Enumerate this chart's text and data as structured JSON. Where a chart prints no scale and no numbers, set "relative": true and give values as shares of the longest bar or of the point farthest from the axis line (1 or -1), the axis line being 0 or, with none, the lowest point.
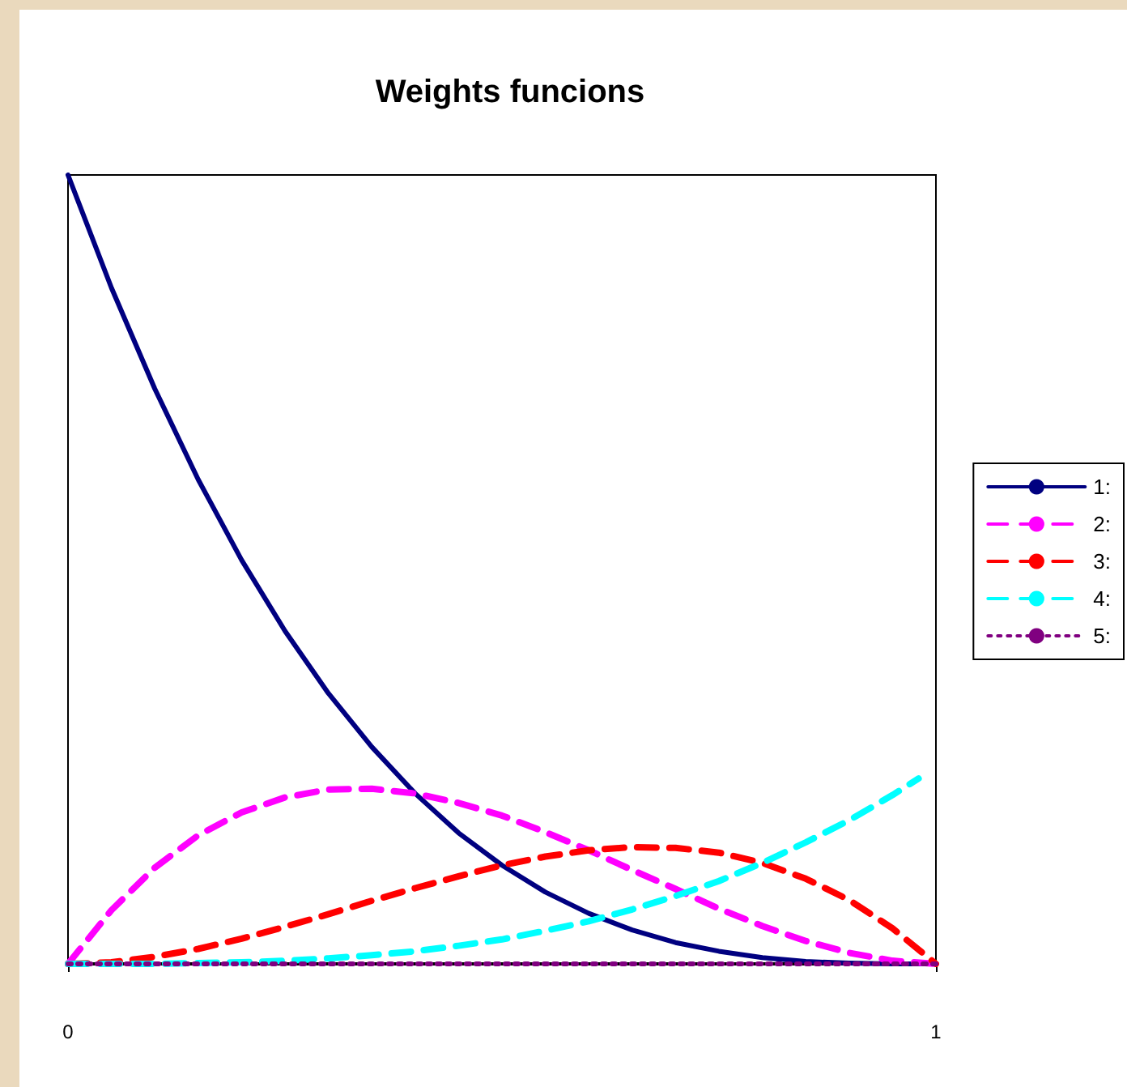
{
  "chart_data": {
    "type": "line",
    "title": "Weights funcions",
    "relative": true,
    "xlim": [
      0,
      1
    ],
    "xticks": [
      0,
      1
    ],
    "grid": false,
    "legend": "right",
    "marker": "none",
    "x": [
      0,
      0.05,
      0.1,
      0.15,
      0.2,
      0.25,
      0.3,
      0.35,
      0.4,
      0.45,
      0.5,
      0.55,
      0.6,
      0.65,
      0.7,
      0.75,
      0.8,
      0.85,
      0.9,
      0.95,
      1
    ],
    "series": [
      {
        "name": "1:",
        "color": "#000080",
        "line_style": "solid",
        "values": [
          1,
          0.857,
          0.729,
          0.614,
          0.512,
          0.422,
          0.343,
          0.275,
          0.216,
          0.166,
          0.125,
          0.091,
          0.064,
          0.043,
          0.027,
          0.016,
          0.008,
          0.003,
          0.001,
          0,
          0
        ]
      },
      {
        "name": "2:",
        "color": "#ff00ff",
        "line_style": "dashed",
        "values": [
          0,
          0.068,
          0.122,
          0.163,
          0.192,
          0.211,
          0.221,
          0.222,
          0.216,
          0.204,
          0.188,
          0.167,
          0.144,
          0.119,
          0.095,
          0.07,
          0.048,
          0.029,
          0.014,
          0.004,
          0
        ]
      },
      {
        "name": "3:",
        "color": "#ff0000",
        "line_style": "dashed",
        "values": [
          0,
          0.002,
          0.009,
          0.019,
          0.032,
          0.047,
          0.063,
          0.08,
          0.096,
          0.111,
          0.125,
          0.136,
          0.144,
          0.148,
          0.147,
          0.141,
          0.128,
          0.108,
          0.081,
          0.045,
          0
        ]
      },
      {
        "name": "4:",
        "color": "#00ffff",
        "line_style": "dashed",
        "x": [
          0,
          0.05,
          0.1,
          0.15,
          0.2,
          0.25,
          0.3,
          0.35,
          0.4,
          0.45,
          0.5,
          0.55,
          0.6,
          0.65,
          0.7,
          0.75,
          0.8,
          0.85,
          0.9,
          0.95,
          0.98
        ],
        "values": [
          0,
          0,
          0,
          0.001,
          0.002,
          0.004,
          0.007,
          0.011,
          0.016,
          0.023,
          0.031,
          0.042,
          0.054,
          0.069,
          0.086,
          0.105,
          0.128,
          0.154,
          0.182,
          0.214,
          0.235
        ]
      },
      {
        "name": "5:",
        "color": "#800080",
        "line_style": "dotted",
        "values": [
          0,
          0,
          0,
          0,
          0,
          0,
          0,
          0,
          0,
          0,
          0,
          0,
          0,
          0,
          0,
          0,
          0,
          0,
          0,
          0,
          0
        ]
      }
    ]
  }
}
